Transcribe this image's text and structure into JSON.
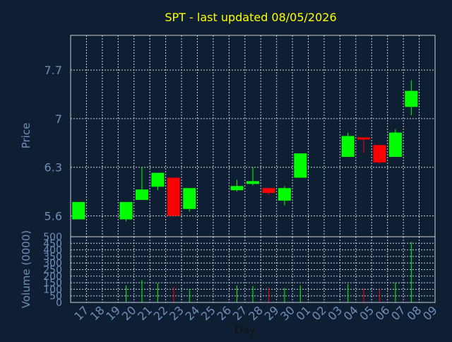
{
  "chart_data": [
    {
      "type": "candlestick",
      "title": "SPT - last updated 08/05/2026",
      "ylabel": "Price",
      "ylim": [
        5.3,
        8.2
      ],
      "yticks": [
        "5.6",
        "6.3",
        "7",
        "7.7"
      ],
      "colors": {
        "up": "#00ff00",
        "down": "#ff0000",
        "title": "#ffff00",
        "axis_text": "#6f8fb8",
        "grid": "#c8d2dc",
        "background": "#0f1f33"
      },
      "grid": true,
      "x": [
        "17",
        "18",
        "19",
        "20",
        "21",
        "22",
        "23",
        "24",
        "25",
        "26",
        "27",
        "28",
        "29",
        "30",
        "01",
        "02",
        "03",
        "04",
        "05",
        "06",
        "07",
        "08",
        "09"
      ],
      "candles": [
        {
          "x": "17",
          "open": 5.55,
          "high": 5.8,
          "low": 5.55,
          "close": 5.8
        },
        {
          "x": "20",
          "open": 5.55,
          "high": 5.8,
          "low": 5.52,
          "close": 5.8
        },
        {
          "x": "21",
          "open": 5.83,
          "high": 6.3,
          "low": 5.83,
          "close": 5.98
        },
        {
          "x": "22",
          "open": 6.02,
          "high": 6.22,
          "low": 5.97,
          "close": 6.22
        },
        {
          "x": "23",
          "open": 6.15,
          "high": 6.15,
          "low": 5.6,
          "close": 5.6
        },
        {
          "x": "24",
          "open": 5.7,
          "high": 6.0,
          "low": 5.66,
          "close": 6.0
        },
        {
          "x": "27",
          "open": 5.97,
          "high": 6.12,
          "low": 5.95,
          "close": 6.03
        },
        {
          "x": "28",
          "open": 6.06,
          "high": 6.3,
          "low": 6.04,
          "close": 6.1
        },
        {
          "x": "29",
          "open": 6.0,
          "high": 6.0,
          "low": 5.9,
          "close": 5.93
        },
        {
          "x": "30",
          "open": 5.82,
          "high": 6.03,
          "low": 5.75,
          "close": 6.0
        },
        {
          "x": "01",
          "open": 6.15,
          "high": 6.5,
          "low": 6.15,
          "close": 6.5
        },
        {
          "x": "04",
          "open": 6.45,
          "high": 6.8,
          "low": 6.45,
          "close": 6.75
        },
        {
          "x": "05",
          "open": 6.73,
          "high": 6.73,
          "low": 6.5,
          "close": 6.7
        },
        {
          "x": "06",
          "open": 6.62,
          "high": 6.62,
          "low": 6.35,
          "close": 6.37
        },
        {
          "x": "07",
          "open": 6.45,
          "high": 6.85,
          "low": 6.45,
          "close": 6.8
        },
        {
          "x": "08",
          "open": 7.17,
          "high": 7.55,
          "low": 7.05,
          "close": 7.4
        }
      ]
    },
    {
      "type": "bar",
      "ylabel": "Volume (0000)",
      "xlabel": "Day",
      "ylim": [
        0,
        500
      ],
      "yticks": [
        "0",
        "50",
        "100",
        "150",
        "200",
        "250",
        "300",
        "350",
        "400",
        "450",
        "500"
      ],
      "categories": [
        "17",
        "18",
        "19",
        "20",
        "21",
        "22",
        "23",
        "24",
        "25",
        "26",
        "27",
        "28",
        "29",
        "30",
        "01",
        "02",
        "03",
        "04",
        "05",
        "06",
        "07",
        "08",
        "09"
      ],
      "bars": [
        {
          "x": "20",
          "value": 130,
          "dir": "up"
        },
        {
          "x": "21",
          "value": 170,
          "dir": "up"
        },
        {
          "x": "22",
          "value": 145,
          "dir": "up"
        },
        {
          "x": "23",
          "value": 120,
          "dir": "down"
        },
        {
          "x": "24",
          "value": 100,
          "dir": "up"
        },
        {
          "x": "27",
          "value": 130,
          "dir": "up"
        },
        {
          "x": "28",
          "value": 125,
          "dir": "up"
        },
        {
          "x": "29",
          "value": 115,
          "dir": "down"
        },
        {
          "x": "30",
          "value": 110,
          "dir": "up"
        },
        {
          "x": "01",
          "value": 130,
          "dir": "up"
        },
        {
          "x": "04",
          "value": 140,
          "dir": "up"
        },
        {
          "x": "05",
          "value": 105,
          "dir": "down"
        },
        {
          "x": "06",
          "value": 100,
          "dir": "down"
        },
        {
          "x": "07",
          "value": 150,
          "dir": "up"
        },
        {
          "x": "08",
          "value": 460,
          "dir": "up"
        }
      ]
    }
  ]
}
